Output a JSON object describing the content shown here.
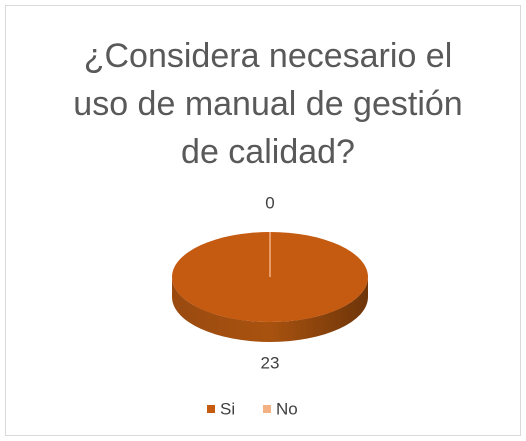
{
  "chart_data": {
    "type": "pie",
    "title": "¿Considera necesario el uso de manual de gestión de calidad?",
    "categories": [
      "Si",
      "No"
    ],
    "values": [
      23,
      0
    ],
    "colors": [
      "#c55a11",
      "#f4b183"
    ],
    "legend": "bottom"
  }
}
